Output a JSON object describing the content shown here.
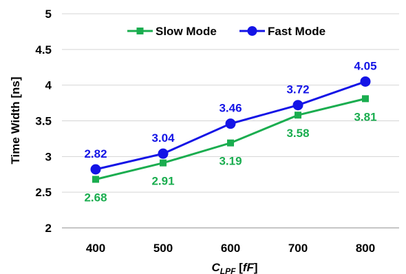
{
  "chart_data": {
    "type": "line",
    "title": "",
    "xlabel_main": "C",
    "xlabel_sub": "LPF",
    "xlabel_unit_open": " [",
    "xlabel_unit": "fF",
    "xlabel_unit_close": "]",
    "ylabel": "Time Width [ns]",
    "categories": [
      "400",
      "500",
      "600",
      "700",
      "800"
    ],
    "y_ticks": [
      "2",
      "2.5",
      "3",
      "3.5",
      "4",
      "4.5",
      "5"
    ],
    "ylim": [
      2,
      5
    ],
    "grid": "horizontal",
    "legend_position": "top-center",
    "series": [
      {
        "name": "Slow Mode",
        "color": "#1aad4f",
        "marker": "square",
        "values": [
          2.68,
          2.91,
          3.19,
          3.58,
          3.81
        ],
        "labels": [
          "2.68",
          "2.91",
          "3.19",
          "3.58",
          "3.81"
        ],
        "label_side": "below"
      },
      {
        "name": "Fast Mode",
        "color": "#1414e6",
        "marker": "circle",
        "values": [
          2.82,
          3.04,
          3.46,
          3.72,
          4.05
        ],
        "labels": [
          "2.82",
          "3.04",
          "3.46",
          "3.72",
          "4.05"
        ],
        "label_side": "above"
      }
    ]
  }
}
